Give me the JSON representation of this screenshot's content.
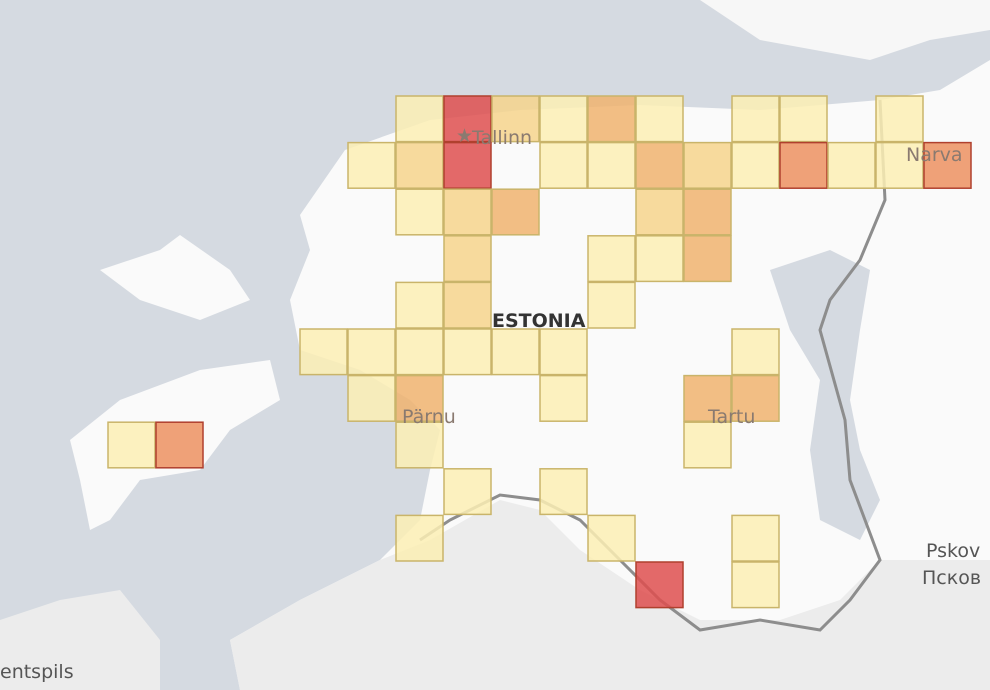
{
  "labels": {
    "tallinn": "Tallinn",
    "narva": "Narva",
    "country": "ESTONIA",
    "parnu": "Pärnu",
    "tartu": "Tartu",
    "pskov": "Pskov",
    "pskov_ru": "Псков",
    "ventspils": "entspils"
  },
  "level_colors": [
    "#fbefb4",
    "#f6d48c",
    "#f0b36f",
    "#ec9160",
    "#de4f4f"
  ],
  "cells": [
    {
      "col": 6,
      "row": 0,
      "level": 1
    },
    {
      "col": 7,
      "row": 0,
      "level": 5
    },
    {
      "col": 8,
      "row": 0,
      "level": 2
    },
    {
      "col": 9,
      "row": 0,
      "level": 1
    },
    {
      "col": 10,
      "row": 0,
      "level": 3
    },
    {
      "col": 11,
      "row": 0,
      "level": 1
    },
    {
      "col": 13,
      "row": 0,
      "level": 1
    },
    {
      "col": 14,
      "row": 0,
      "level": 1
    },
    {
      "col": 16,
      "row": 0,
      "level": 1
    },
    {
      "col": 5,
      "row": 1,
      "level": 1
    },
    {
      "col": 6,
      "row": 1,
      "level": 2
    },
    {
      "col": 7,
      "row": 1,
      "level": 5
    },
    {
      "col": 9,
      "row": 1,
      "level": 1
    },
    {
      "col": 10,
      "row": 1,
      "level": 1
    },
    {
      "col": 11,
      "row": 1,
      "level": 3
    },
    {
      "col": 12,
      "row": 1,
      "level": 2
    },
    {
      "col": 13,
      "row": 1,
      "level": 1
    },
    {
      "col": 14,
      "row": 1,
      "level": 4
    },
    {
      "col": 15,
      "row": 1,
      "level": 1
    },
    {
      "col": 16,
      "row": 1,
      "level": 1
    },
    {
      "col": 17,
      "row": 1,
      "level": 4
    },
    {
      "col": 6,
      "row": 2,
      "level": 1
    },
    {
      "col": 7,
      "row": 2,
      "level": 2
    },
    {
      "col": 8,
      "row": 2,
      "level": 3
    },
    {
      "col": 11,
      "row": 2,
      "level": 2
    },
    {
      "col": 12,
      "row": 2,
      "level": 3
    },
    {
      "col": 7,
      "row": 3,
      "level": 2
    },
    {
      "col": 10,
      "row": 3,
      "level": 1
    },
    {
      "col": 11,
      "row": 3,
      "level": 1
    },
    {
      "col": 12,
      "row": 3,
      "level": 3
    },
    {
      "col": 6,
      "row": 4,
      "level": 1
    },
    {
      "col": 7,
      "row": 4,
      "level": 2
    },
    {
      "col": 10,
      "row": 4,
      "level": 1
    },
    {
      "col": 4,
      "row": 5,
      "level": 1
    },
    {
      "col": 5,
      "row": 5,
      "level": 1
    },
    {
      "col": 6,
      "row": 5,
      "level": 1
    },
    {
      "col": 7,
      "row": 5,
      "level": 1
    },
    {
      "col": 8,
      "row": 5,
      "level": 1
    },
    {
      "col": 9,
      "row": 5,
      "level": 1
    },
    {
      "col": 13,
      "row": 5,
      "level": 1
    },
    {
      "col": 5,
      "row": 6,
      "level": 1
    },
    {
      "col": 6,
      "row": 6,
      "level": 3
    },
    {
      "col": 9,
      "row": 6,
      "level": 1
    },
    {
      "col": 12,
      "row": 6,
      "level": 3
    },
    {
      "col": 13,
      "row": 6,
      "level": 3
    },
    {
      "col": 0,
      "row": 7,
      "level": 1
    },
    {
      "col": 1,
      "row": 7,
      "level": 4
    },
    {
      "col": 6,
      "row": 7,
      "level": 1
    },
    {
      "col": 12,
      "row": 7,
      "level": 1
    },
    {
      "col": 7,
      "row": 8,
      "level": 1
    },
    {
      "col": 9,
      "row": 8,
      "level": 1
    },
    {
      "col": 6,
      "row": 9,
      "level": 1
    },
    {
      "col": 10,
      "row": 9,
      "level": 1
    },
    {
      "col": 13,
      "row": 9,
      "level": 1
    },
    {
      "col": 11,
      "row": 10,
      "level": 5
    },
    {
      "col": 13,
      "row": 10,
      "level": 1
    }
  ]
}
